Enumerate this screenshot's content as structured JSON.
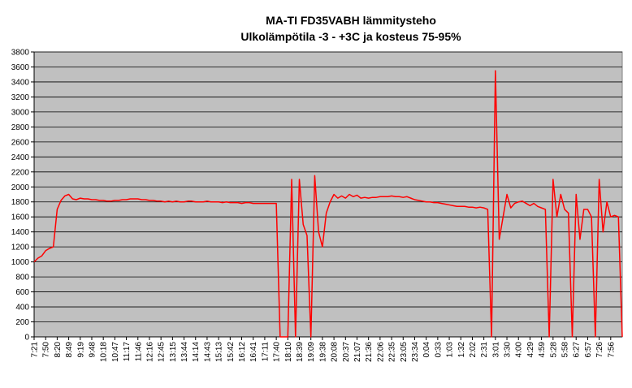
{
  "chart_data": {
    "type": "line",
    "title": "MA-TI FD35VABH lämmitysteho",
    "subtitle": "Ulkolämpötila  -3 - +3C ja kosteus 75-95%",
    "categories": [
      "7:21",
      null,
      null,
      "7:50",
      null,
      null,
      "8:20",
      null,
      null,
      "8:49",
      null,
      null,
      "9:19",
      null,
      null,
      "9:48",
      null,
      null,
      "10:18",
      null,
      null,
      "10:47",
      null,
      null,
      "11:17",
      null,
      null,
      "11:46",
      null,
      null,
      "12:16",
      null,
      null,
      "12:45",
      null,
      null,
      "13:15",
      null,
      null,
      "13:44",
      null,
      null,
      "14:14",
      null,
      null,
      "14:43",
      null,
      null,
      "15:13",
      null,
      null,
      "15:42",
      null,
      null,
      "16:12",
      null,
      null,
      "16:41",
      null,
      null,
      "17:11",
      null,
      null,
      "17:40",
      null,
      null,
      "18:10",
      null,
      null,
      "18:39",
      null,
      null,
      "19:09",
      null,
      null,
      "19:38",
      null,
      null,
      "20:08",
      null,
      null,
      "20:37",
      null,
      null,
      "21:07",
      null,
      null,
      "21:36",
      null,
      null,
      "22:06",
      null,
      null,
      "22:35",
      null,
      null,
      "23:05",
      null,
      null,
      "23:34",
      null,
      null,
      "0:04",
      null,
      null,
      "0:33",
      null,
      null,
      "1:03",
      null,
      null,
      "1:32",
      null,
      null,
      "2:02",
      null,
      null,
      "2:31",
      null,
      null,
      "3:01",
      null,
      null,
      "3:30",
      null,
      null,
      "4:00",
      null,
      null,
      "4:29",
      null,
      null,
      "4:59",
      null,
      null,
      "5:28",
      null,
      null,
      "5:58",
      null,
      null,
      "6:27",
      null,
      null,
      "6:57",
      null,
      null,
      "7:26",
      null,
      null,
      "7:56",
      null,
      null,
      null
    ],
    "values": [
      1000,
      1050,
      1080,
      1150,
      1180,
      1200,
      1700,
      1820,
      1880,
      1900,
      1840,
      1830,
      1850,
      1840,
      1840,
      1830,
      1830,
      1820,
      1820,
      1810,
      1810,
      1820,
      1820,
      1830,
      1830,
      1840,
      1840,
      1840,
      1830,
      1830,
      1820,
      1820,
      1810,
      1810,
      1800,
      1810,
      1800,
      1810,
      1800,
      1800,
      1810,
      1810,
      1800,
      1800,
      1800,
      1810,
      1800,
      1800,
      1800,
      1790,
      1800,
      1790,
      1790,
      1790,
      1780,
      1790,
      1790,
      1780,
      1780,
      1780,
      1780,
      1780,
      1780,
      1780,
      0,
      0,
      0,
      2100,
      0,
      2100,
      1500,
      1350,
      0,
      2150,
      1400,
      1200,
      1650,
      1800,
      1900,
      1850,
      1880,
      1850,
      1900,
      1870,
      1890,
      1850,
      1860,
      1850,
      1860,
      1860,
      1870,
      1870,
      1870,
      1880,
      1870,
      1870,
      1860,
      1870,
      1850,
      1830,
      1820,
      1810,
      1800,
      1800,
      1790,
      1790,
      1780,
      1770,
      1760,
      1750,
      1740,
      1740,
      1740,
      1730,
      1730,
      1720,
      1730,
      1720,
      1700,
      0,
      3550,
      1300,
      1600,
      1900,
      1720,
      1780,
      1800,
      1810,
      1780,
      1750,
      1780,
      1740,
      1720,
      1700,
      0,
      2100,
      1600,
      1900,
      1700,
      1650,
      0,
      1900,
      1300,
      1700,
      1700,
      1600,
      0,
      2100,
      1400,
      1800,
      1600,
      1620,
      1600,
      0
    ],
    "color": "#ff0000",
    "ylim": [
      0,
      3800
    ],
    "yticks": [
      0,
      200,
      400,
      600,
      800,
      1000,
      1200,
      1400,
      1600,
      1800,
      2000,
      2200,
      2400,
      2600,
      2800,
      3000,
      3200,
      3400,
      3600,
      3800
    ],
    "grid": true
  }
}
